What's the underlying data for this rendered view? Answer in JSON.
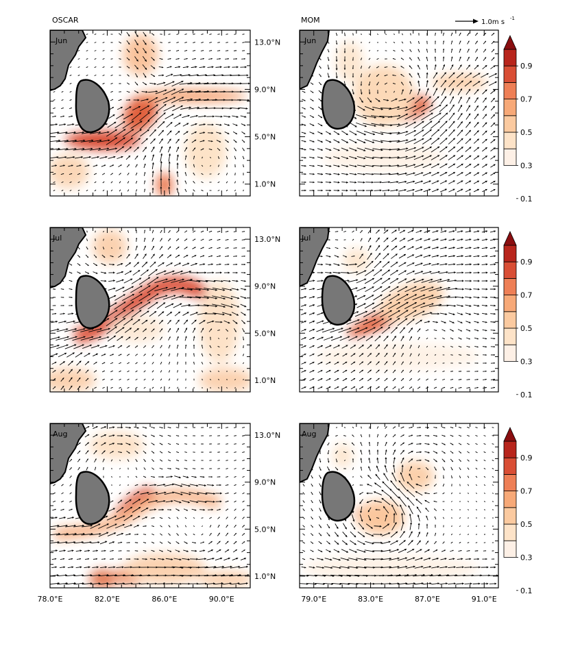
{
  "figure": {
    "columns": [
      "OSCAR",
      "MOM"
    ],
    "months": [
      "Jun",
      "Jul",
      "Aug"
    ],
    "ref_vector_label": "1.0m s",
    "ref_vector_exp": "-1"
  },
  "axes": {
    "left_x_ticks": [
      "78.0°E",
      "82.0°E",
      "86.0°E",
      "90.0°E"
    ],
    "right_x_ticks": [
      "79.0°E",
      "83.0°E",
      "87.0°E",
      "91.0°E"
    ],
    "y_ticks": [
      "13.0°N",
      "9.0°N",
      "5.0°N",
      "1.0°N"
    ]
  },
  "colorbar": {
    "labels": [
      "0.9",
      "0.7",
      "0.5",
      "0.3",
      "0.1"
    ],
    "colors": [
      "#fdf0e6",
      "#fde3c8",
      "#fbcaa0",
      "#f7a978",
      "#ee7f56",
      "#d94e35",
      "#b8251c",
      "#8a0e10"
    ]
  },
  "colors": {
    "land": "#777777",
    "arrow": "#000000",
    "shade_strong": "#d7442c",
    "shade_mid": "#f29a6b",
    "shade_weak": "#fbd2b0"
  },
  "chart_data": {
    "type": "vector_field",
    "variable": "surface current speed (shading) and velocity vectors",
    "units": "m s-1",
    "colorbar_range": [
      0.1,
      0.9
    ],
    "panels": [
      {
        "source": "OSCAR",
        "month": "Jun",
        "xlim": [
          78,
          92
        ],
        "ylim": [
          0,
          14
        ],
        "max_speed_location": "jet south-east of Sri Lanka, ~80-84°E, 5-9°N",
        "note": "strong eastward current ~5°N then north-eastward flow near 85-86°E"
      },
      {
        "source": "MOM",
        "month": "Jun",
        "xlim": [
          78,
          92
        ],
        "ylim": [
          0,
          14
        ],
        "max_speed_location": "~84-85°E, 7-8°N"
      },
      {
        "source": "OSCAR",
        "month": "Jul",
        "xlim": [
          78,
          92
        ],
        "ylim": [
          0,
          14
        ],
        "max_speed_location": "arc from ~81°E 5°N to ~87°E 9°N"
      },
      {
        "source": "MOM",
        "month": "Jul",
        "xlim": [
          78,
          92
        ],
        "ylim": [
          0,
          14
        ],
        "max_speed_location": "~83-86°E, 6-8°N"
      },
      {
        "source": "OSCAR",
        "month": "Aug",
        "xlim": [
          78,
          92
        ],
        "ylim": [
          0,
          14
        ],
        "max_speed_location": "~82-84°E, 7-9°N and near 1°N"
      },
      {
        "source": "MOM",
        "month": "Aug",
        "xlim": [
          78,
          92
        ],
        "ylim": [
          0,
          14
        ],
        "max_speed_location": "~83-84°E, 6-7°N, eddy near 87°E 9-10°N"
      }
    ]
  }
}
